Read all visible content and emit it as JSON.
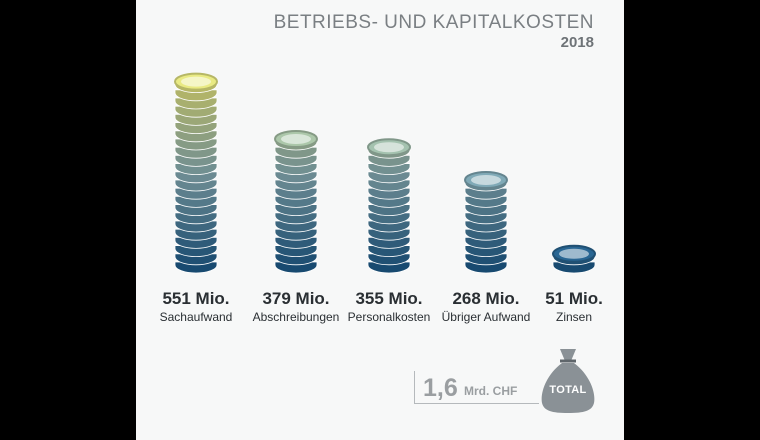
{
  "chart_data": {
    "type": "bar",
    "title": "BETRIEBS- UND KAPITALKOSTEN",
    "subtitle": "2018",
    "categories": [
      "Sachaufwand",
      "Abschreibungen",
      "Personalkosten",
      "Übriger Aufwand",
      "Zinsen"
    ],
    "values": [
      551,
      379,
      355,
      268,
      51
    ],
    "value_labels": [
      "551 Mio.",
      "379 Mio.",
      "355 Mio.",
      "268 Mio.",
      "51 Mio."
    ],
    "unit": "Mio."
  },
  "total": {
    "value": "1,6",
    "unit": "Mrd. CHF",
    "badge": "TOTAL"
  },
  "colors": {
    "top": "#f2ef7d",
    "bottom": "#1f5f8f",
    "bag": "#8a9196"
  }
}
